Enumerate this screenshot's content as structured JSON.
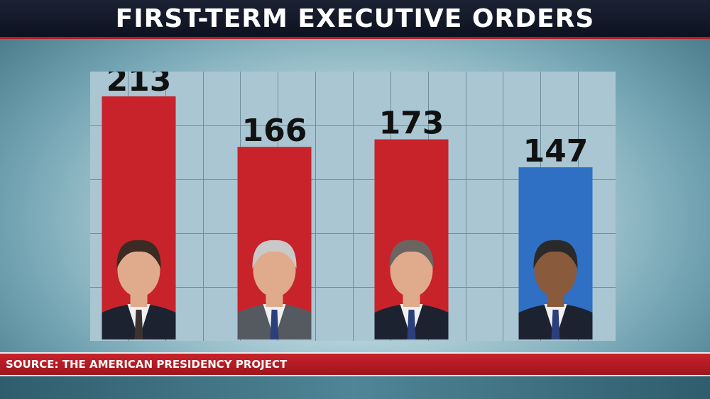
{
  "header": {
    "title": "FIRST-TERM EXECUTIVE ORDERS"
  },
  "footer": {
    "source": "SOURCE: THE AMERICAN PRESIDENCY PROJECT"
  },
  "colors": {
    "republican": "#c8222b",
    "democrat": "#2f6fc4",
    "grid_bg": "#a9c6d2",
    "grid_line": "#6f8f9e"
  },
  "chart_data": {
    "type": "bar",
    "title": "FIRST-TERM EXECUTIVE ORDERS",
    "xlabel": "",
    "ylabel": "",
    "ylim": [
      0,
      240
    ],
    "grid": true,
    "categories": [
      "",
      "",
      "",
      ""
    ],
    "values": [
      213,
      166,
      173,
      147
    ],
    "bar_colors": [
      "#c8222b",
      "#c8222b",
      "#c8222b",
      "#2f6fc4"
    ],
    "icons": [
      "president-portrait-icon",
      "president-portrait-icon",
      "president-portrait-icon",
      "president-portrait-icon"
    ]
  }
}
